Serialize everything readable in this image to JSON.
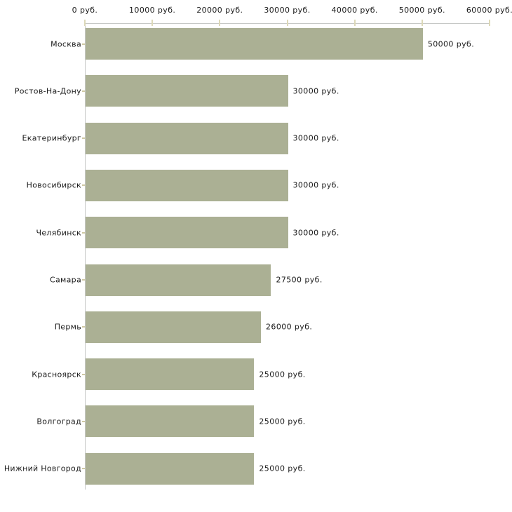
{
  "chart_data": {
    "type": "bar",
    "orientation": "horizontal",
    "title": "",
    "xlabel": "",
    "ylabel": "",
    "categories": [
      "Москва",
      "Ростов-На-Дону",
      "Екатеринбург",
      "Новосибирск",
      "Челябинск",
      "Самара",
      "Пермь",
      "Красноярск",
      "Волгоград",
      "Нижний Новгород"
    ],
    "values": [
      50000,
      30000,
      30000,
      30000,
      30000,
      27500,
      26000,
      25000,
      25000,
      25000
    ],
    "value_labels": [
      "50000 руб.",
      "30000 руб.",
      "30000 руб.",
      "30000 руб.",
      "30000 руб.",
      "27500 руб.",
      "26000 руб.",
      "25000 руб.",
      "25000 руб.",
      "25000 руб."
    ],
    "x_axis": {
      "position": "top",
      "min": 0,
      "max": 60000,
      "ticks": [
        0,
        10000,
        20000,
        30000,
        40000,
        50000,
        60000
      ],
      "tick_labels": [
        "0 руб.",
        "10000 руб.",
        "20000 руб.",
        "30000 руб.",
        "40000 руб.",
        "50000 руб.",
        "60000 руб."
      ]
    },
    "grid": false,
    "legend": false,
    "colors": {
      "bar": "#abb094",
      "axis_line": "#c6c8c6",
      "x_tick": "#ddd9b8",
      "y_tick": "#cfc9a4",
      "text": "#1a1a1a",
      "background": "#ffffff"
    }
  }
}
